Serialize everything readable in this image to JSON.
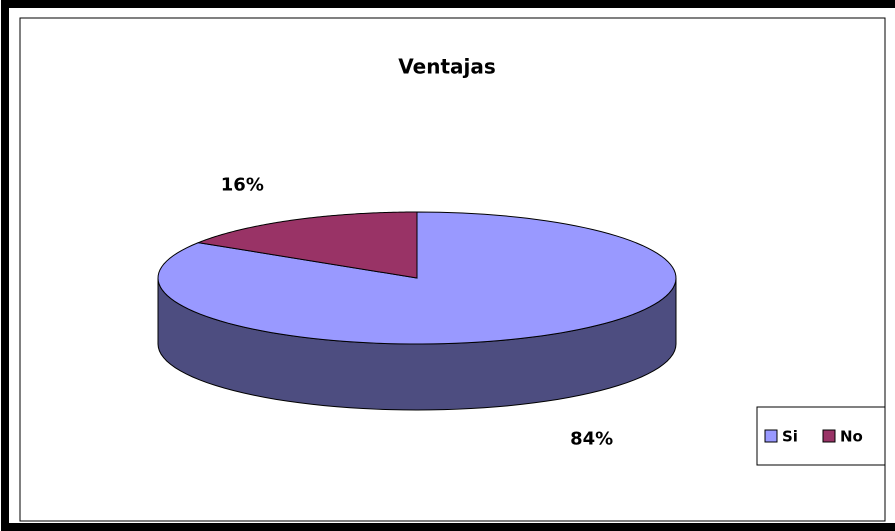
{
  "chart_data": {
    "type": "pie",
    "title": "Ventajas",
    "categories": [
      "Si",
      "No"
    ],
    "values": [
      84,
      16
    ],
    "value_labels": [
      "84%",
      "16%"
    ],
    "colors": [
      "#9999ff",
      "#993366"
    ],
    "legend": "right"
  }
}
